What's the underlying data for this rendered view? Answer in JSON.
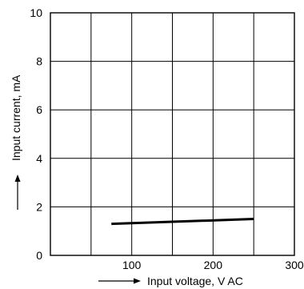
{
  "chart_data": {
    "type": "line",
    "xlabel": "Input voltage, V AC",
    "ylabel": "Input current, mA",
    "xlim": [
      0,
      300
    ],
    "ylim": [
      0,
      10
    ],
    "x_ticks": [
      100,
      200,
      300
    ],
    "x_tick_labels": [
      "100",
      "200",
      "300"
    ],
    "y_ticks": [
      0,
      2,
      4,
      6,
      8,
      10
    ],
    "y_tick_labels": [
      "0",
      "2",
      "4",
      "6",
      "8",
      "10"
    ],
    "grid": true,
    "series": [
      {
        "x": [
          75,
          250
        ],
        "y": [
          1.3,
          1.5
        ],
        "color": "#000000"
      }
    ]
  }
}
